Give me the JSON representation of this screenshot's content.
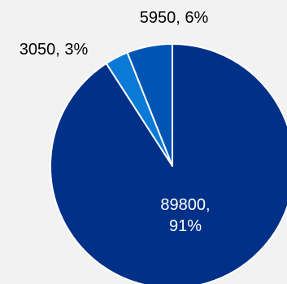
{
  "chart_data": {
    "type": "pie",
    "title": "",
    "slices": [
      {
        "value": 89800,
        "percent": "91%",
        "label": "89800,",
        "label_line2": "91%",
        "color": "#003087"
      },
      {
        "value": 3050,
        "percent": "3%",
        "label": "3050, 3%",
        "label_line2": "",
        "color": "#0a7ad6"
      },
      {
        "value": 5950,
        "percent": "6%",
        "label": "5950, 6%",
        "label_line2": "",
        "color": "#0055b3"
      }
    ],
    "label_colors": {
      "inside": "#ffffff",
      "outside": "#000000"
    },
    "background": "#f2f2f2",
    "slice_border": "#ffffff"
  }
}
